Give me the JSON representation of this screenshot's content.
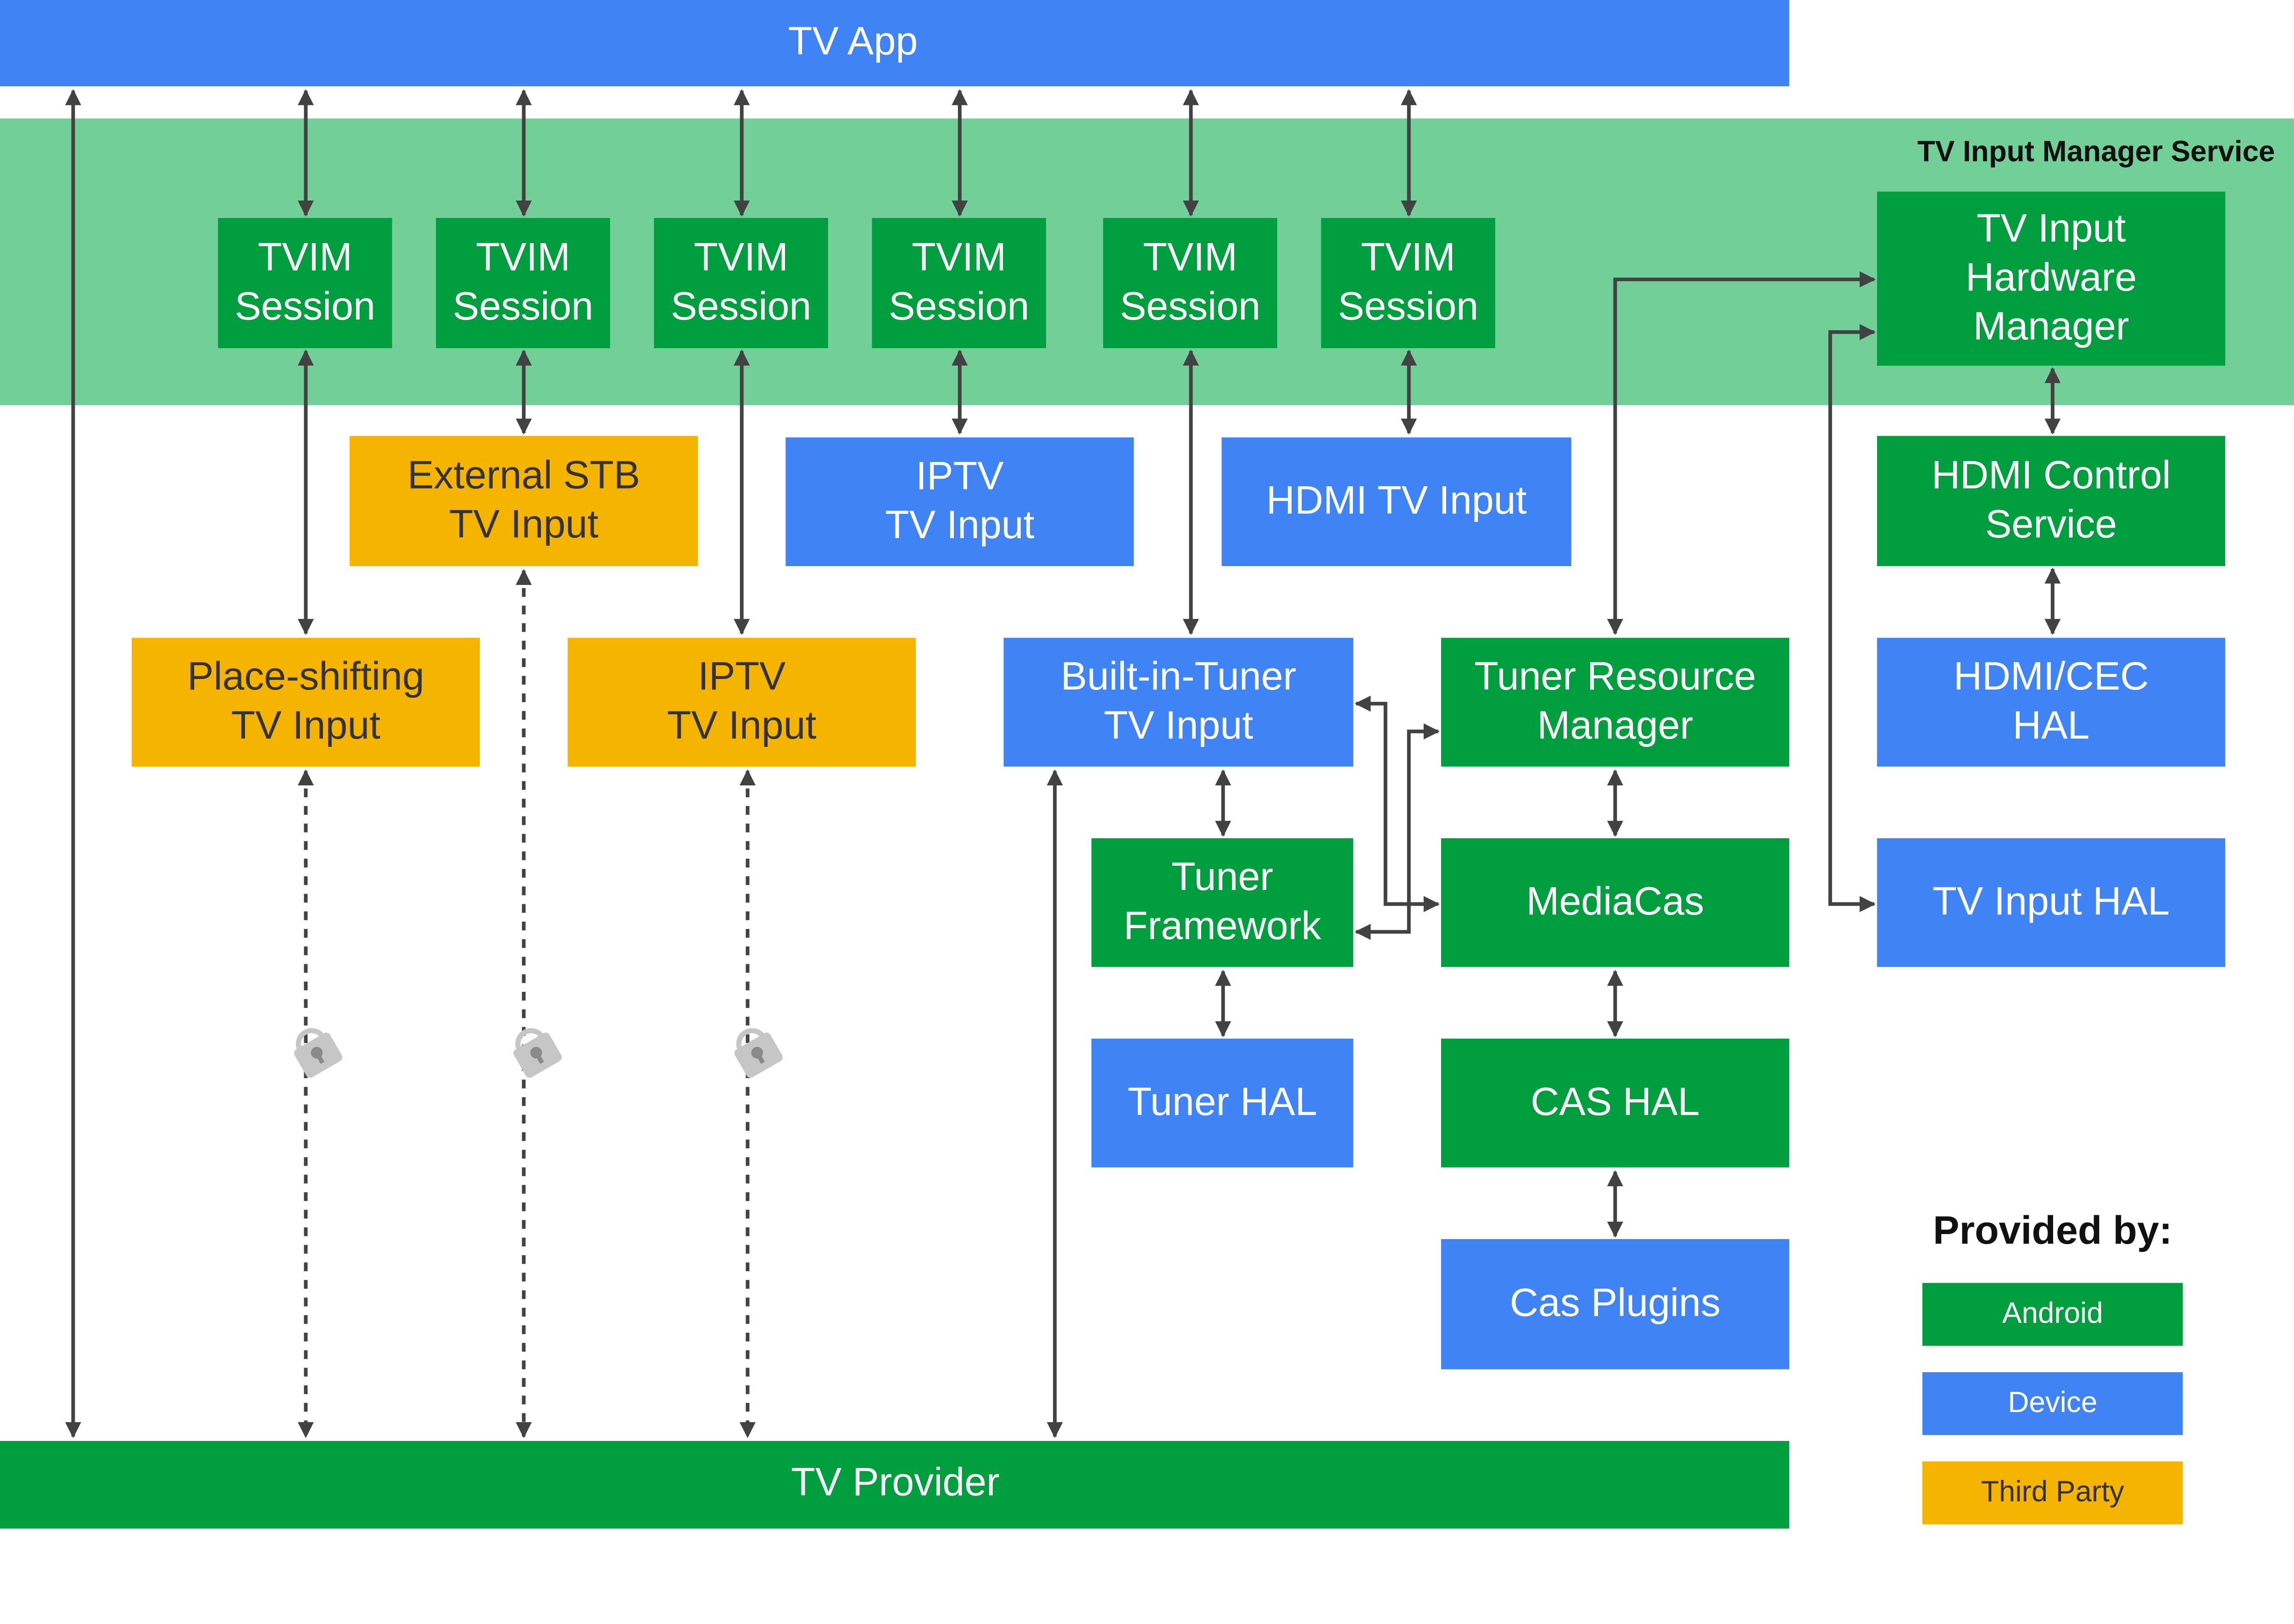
{
  "colors": {
    "android": "#009E3F",
    "device": "#4083F5",
    "third_party": "#F5B400",
    "service_band": "#71CF97",
    "arrow": "#424242"
  },
  "top_bar": {
    "label": "TV App"
  },
  "service_band": {
    "label": "TV Input Manager Service"
  },
  "sessions": [
    {
      "lines": [
        "TVIM",
        "Session"
      ]
    },
    {
      "lines": [
        "TVIM",
        "Session"
      ]
    },
    {
      "lines": [
        "TVIM",
        "Session"
      ]
    },
    {
      "lines": [
        "TVIM",
        "Session"
      ]
    },
    {
      "lines": [
        "TVIM",
        "Session"
      ]
    },
    {
      "lines": [
        "TVIM",
        "Session"
      ]
    }
  ],
  "boxes": {
    "hardware_manager": {
      "lines": [
        "TV Input",
        "Hardware",
        "Manager"
      ],
      "provider": "android"
    },
    "external_stb": {
      "lines": [
        "External STB",
        "TV Input"
      ],
      "provider": "third_party"
    },
    "iptv_device": {
      "lines": [
        "IPTV",
        "TV Input"
      ],
      "provider": "device"
    },
    "hdmi_input": {
      "lines": [
        "HDMI TV Input"
      ],
      "provider": "device"
    },
    "hdmi_control": {
      "lines": [
        "HDMI Control",
        "Service"
      ],
      "provider": "android"
    },
    "place_shifting": {
      "lines": [
        "Place-shifting",
        "TV Input"
      ],
      "provider": "third_party"
    },
    "iptv_third": {
      "lines": [
        "IPTV",
        "TV Input"
      ],
      "provider": "third_party"
    },
    "builtin_tuner": {
      "lines": [
        "Built-in-Tuner",
        "TV Input"
      ],
      "provider": "device"
    },
    "tuner_resource": {
      "lines": [
        "Tuner Resource",
        "Manager"
      ],
      "provider": "android"
    },
    "hdmi_cec_hal": {
      "lines": [
        "HDMI/CEC",
        "HAL"
      ],
      "provider": "device"
    },
    "tuner_framework": {
      "lines": [
        "Tuner",
        "Framework"
      ],
      "provider": "android"
    },
    "mediacas": {
      "lines": [
        "MediaCas"
      ],
      "provider": "android"
    },
    "tv_input_hal": {
      "lines": [
        "TV Input HAL"
      ],
      "provider": "device"
    },
    "tuner_hal": {
      "lines": [
        "Tuner HAL"
      ],
      "provider": "device"
    },
    "cas_hal": {
      "lines": [
        "CAS HAL"
      ],
      "provider": "android"
    },
    "cas_plugins": {
      "lines": [
        "Cas Plugins"
      ],
      "provider": "device"
    }
  },
  "bottom_bar": {
    "label": "TV Provider"
  },
  "legend": {
    "title": "Provided by:",
    "items": [
      {
        "label": "Android",
        "color": "#009E3F"
      },
      {
        "label": "Device",
        "color": "#4083F5"
      },
      {
        "label": "Third Party",
        "color": "#F5B400"
      }
    ]
  },
  "icons": {
    "lock": "lock-icon"
  }
}
